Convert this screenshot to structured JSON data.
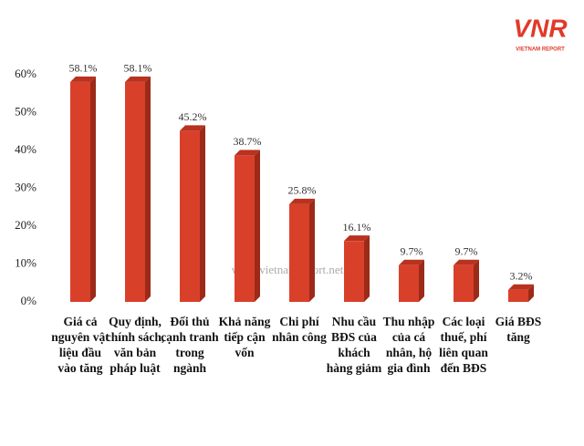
{
  "chart_data": {
    "type": "bar",
    "categories": [
      "Giá cả nguyên vật liệu đầu vào tăng",
      "Quy định, chính sách, văn bản pháp luật",
      "Đối thủ cạnh tranh trong ngành",
      "Khả năng tiếp cận vốn",
      "Chi phí nhân công",
      "Nhu cầu BĐS của khách hàng giảm",
      "Thu nhập của cá nhân, hộ gia đình",
      "Các loại thuế, phí liên quan đến BĐS",
      "Giá BĐS tăng"
    ],
    "values": [
      58.1,
      58.1,
      45.2,
      38.7,
      25.8,
      16.1,
      9.7,
      9.7,
      3.2
    ],
    "value_labels": [
      "58.1%",
      "58.1%",
      "45.2%",
      "38.7%",
      "25.8%",
      "16.1%",
      "9.7%",
      "9.7%",
      "3.2%"
    ],
    "color": "#d9402a",
    "ylim": [
      0,
      60
    ],
    "yticks": [
      {
        "value": 0,
        "label": "0%"
      },
      {
        "value": 10,
        "label": "10%"
      },
      {
        "value": 20,
        "label": "20%"
      },
      {
        "value": 30,
        "label": "30%"
      },
      {
        "value": 40,
        "label": "40%"
      },
      {
        "value": 50,
        "label": "50%"
      },
      {
        "value": 60,
        "label": "60%"
      }
    ],
    "grid": false,
    "watermark": "www.vietnamreport.net",
    "logo": {
      "text": "VNR",
      "subtitle": "VIETNAM REPORT"
    }
  }
}
